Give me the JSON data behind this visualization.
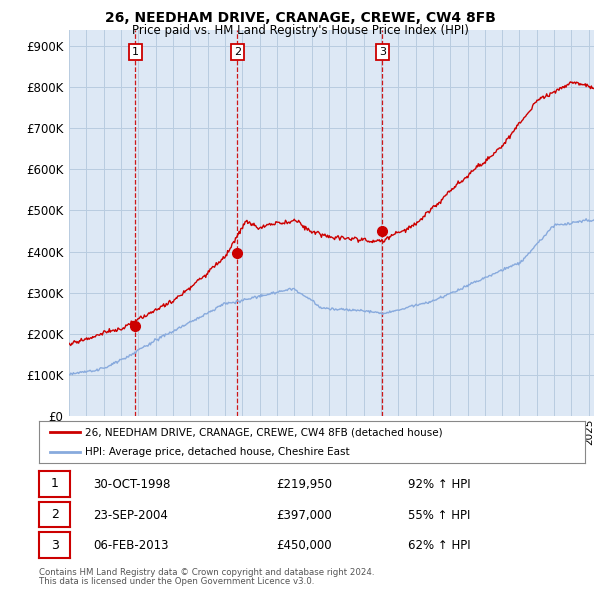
{
  "title": "26, NEEDHAM DRIVE, CRANAGE, CREWE, CW4 8FB",
  "subtitle": "Price paid vs. HM Land Registry's House Price Index (HPI)",
  "legend_line1": "26, NEEDHAM DRIVE, CRANAGE, CREWE, CW4 8FB (detached house)",
  "legend_line2": "HPI: Average price, detached house, Cheshire East",
  "footer1": "Contains HM Land Registry data © Crown copyright and database right 2024.",
  "footer2": "This data is licensed under the Open Government Licence v3.0.",
  "table": [
    {
      "num": "1",
      "date": "30-OCT-1998",
      "price": "£219,950",
      "hpi": "92% ↑ HPI"
    },
    {
      "num": "2",
      "date": "23-SEP-2004",
      "price": "£397,000",
      "hpi": "55% ↑ HPI"
    },
    {
      "num": "3",
      "date": "06-FEB-2013",
      "price": "£450,000",
      "hpi": "62% ↑ HPI"
    }
  ],
  "sale_dates": [
    1998.83,
    2004.72,
    2013.09
  ],
  "sale_prices": [
    219950,
    397000,
    450000
  ],
  "sale_nums": [
    "1",
    "2",
    "3"
  ],
  "red_line_color": "#cc0000",
  "blue_line_color": "#88aadd",
  "background_color": "#ffffff",
  "plot_bg_color": "#dde8f5",
  "grid_color": "#b8cce0",
  "ylim": [
    0,
    940000
  ],
  "xlim_start": 1995.0,
  "xlim_end": 2025.3,
  "yticks": [
    0,
    100000,
    200000,
    300000,
    400000,
    500000,
    600000,
    700000,
    800000,
    900000
  ]
}
